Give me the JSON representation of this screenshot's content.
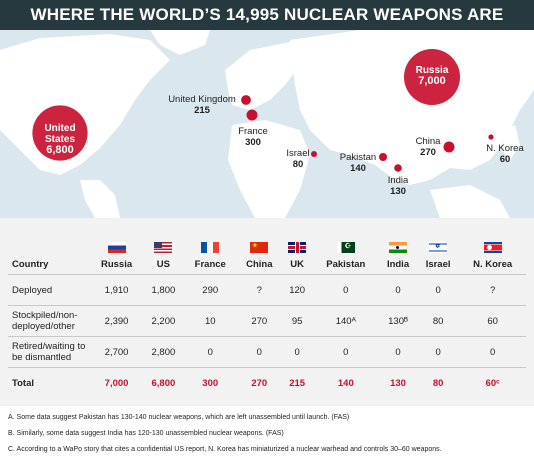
{
  "title": "WHERE THE WORLD’S 14,995 NUCLEAR WEAPONS ARE",
  "map_labels": [
    {
      "name": "United States",
      "value": "6,800"
    },
    {
      "name": "Russia",
      "value": "7,000"
    },
    {
      "name": "United Kingdom",
      "value": "215"
    },
    {
      "name": "France",
      "value": "300"
    },
    {
      "name": "Israel",
      "value": "80"
    },
    {
      "name": "Pakistan",
      "value": "140"
    },
    {
      "name": "India",
      "value": "130"
    },
    {
      "name": "China",
      "value": "270"
    },
    {
      "name": "N. Korea",
      "value": "60"
    }
  ],
  "colors": {
    "accent": "#c8102e",
    "banner": "#26393f",
    "ocean": "#dbe7ee",
    "land": "#ffffff",
    "table_bg": "#f2f2f2"
  },
  "chart_data": {
    "type": "table",
    "title": "WHERE THE WORLD’S 14,995 NUCLEAR WEAPONS ARE",
    "header_label": "Country",
    "columns": [
      "Russia",
      "US",
      "France",
      "China",
      "UK",
      "Pakistan",
      "India",
      "Israel",
      "N. Korea"
    ],
    "rows": [
      {
        "label": "Deployed",
        "values": [
          "1,910",
          "1,800",
          "290",
          "?",
          "120",
          "0",
          "0",
          "0",
          "?"
        ]
      },
      {
        "label": "Stockpiled/non-deployed/other",
        "values": [
          "2,390",
          "2,200",
          "10",
          "270",
          "95",
          "140ᴬ",
          "130ᴮ",
          "80",
          "60"
        ]
      },
      {
        "label": "Retired/waiting to be dismantled",
        "values": [
          "2,700",
          "2,800",
          "0",
          "0",
          "0",
          "0",
          "0",
          "0",
          "0"
        ]
      },
      {
        "label": "Total",
        "values": [
          "7,000",
          "6,800",
          "300",
          "270",
          "215",
          "140",
          "130",
          "80",
          "60ᶜ"
        ]
      }
    ],
    "bubble_values": {
      "Russia": 7000,
      "United States": 6800,
      "France": 300,
      "China": 270,
      "United Kingdom": 215,
      "Pakistan": 140,
      "India": 130,
      "Israel": 80,
      "N. Korea": 60
    }
  },
  "notes": [
    "A. Some data suggest Pakistan has 130-140 nuclear weapons, which are left unassembled until launch. (FAS)",
    "B. Similarly, some data suggest India has 120-130 unassembled nuclear weapons. (FAS)",
    "C. According to a WaPo story that cites a confidential US report, N. Korea has miniaturized a nuclear warhead and controls 30–60 weapons."
  ]
}
